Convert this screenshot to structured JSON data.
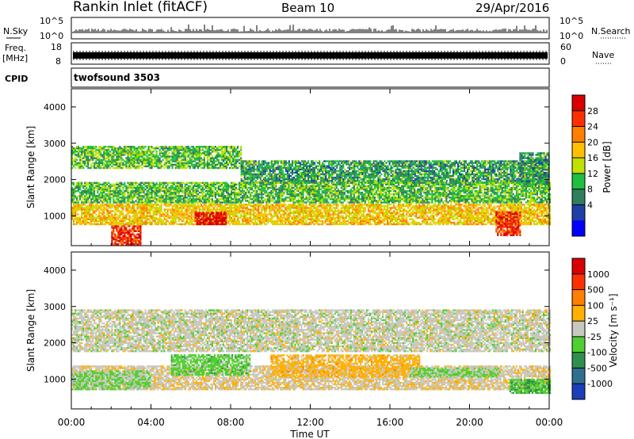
{
  "header": {
    "station": "Rankin Inlet (fitACF)",
    "beam": "Beam 10",
    "date": "29/Apr/2016"
  },
  "noise_panel": {
    "left_label": "N.Sky",
    "left_ticks": [
      "10^5",
      "10^0"
    ],
    "right_ticks": [
      "10^5",
      "10^0"
    ],
    "right_label": "N.Search"
  },
  "freq_panel": {
    "left_label_line1": "Freq.",
    "left_label_line2": "[MHz]",
    "left_ticks": [
      "18",
      "8"
    ],
    "right_ticks": [
      "60",
      "0"
    ],
    "right_label": "Nave"
  },
  "cpid_panel": {
    "label": "CPID",
    "program": "twofsound 3503"
  },
  "power_panel": {
    "ylabel": "Slant Range [km]",
    "yticks": [
      "4000",
      "3000",
      "2000",
      "1000"
    ],
    "colorbar_label": "Power [dB]",
    "colorbar_ticks": [
      "28",
      "24",
      "20",
      "16",
      "12",
      "8",
      "4"
    ],
    "colors": [
      "#0000ff",
      "#1f3fa8",
      "#2f7f5f",
      "#1fbf3f",
      "#bfe000",
      "#ffc000",
      "#ff8000",
      "#ff3000",
      "#d80000"
    ]
  },
  "velocity_panel": {
    "ylabel": "Slant Range [km]",
    "yticks": [
      "4000",
      "3000",
      "2000",
      "1000"
    ],
    "colorbar_label": "Velocity [m s⁻¹]",
    "colorbar_ticks": [
      "1000",
      "500",
      "100",
      "25",
      "-25",
      "-100",
      "-500",
      "-1000"
    ],
    "colors": [
      "#1a3fb8",
      "#2f6f8f",
      "#2f8f4f",
      "#4fcf2f",
      "#c8c8c0",
      "#ffb000",
      "#ff8000",
      "#ff3000",
      "#d80000"
    ]
  },
  "x_axis": {
    "ticks": [
      "00:00",
      "04:00",
      "08:00",
      "12:00",
      "16:00",
      "20:00",
      "00:00"
    ],
    "label": "Time UT"
  },
  "chart_data": {
    "type": "heatmap",
    "title": "Rankin Inlet (fitACF)",
    "x_range_hours_ut": [
      0,
      24
    ],
    "y_range_km": [
      180,
      4500
    ],
    "panels": [
      {
        "name": "Power",
        "unit": "dB",
        "scale": [
          0,
          30
        ],
        "bands": [
          {
            "t0": 0,
            "t1": 8.5,
            "r0": 2300,
            "r1": 2900,
            "value": 12
          },
          {
            "t0": 8.5,
            "t1": 24,
            "r0": 1900,
            "r1": 2500,
            "value": 10
          },
          {
            "t0": 0,
            "t1": 24,
            "r0": 1350,
            "r1": 1900,
            "value": 12
          },
          {
            "t0": 0,
            "t1": 24,
            "r0": 750,
            "r1": 1300,
            "value": 18
          },
          {
            "t0": 2,
            "t1": 3.5,
            "r0": 200,
            "r1": 700,
            "value": 26
          },
          {
            "t0": 6.2,
            "t1": 7.8,
            "r0": 750,
            "r1": 1100,
            "value": 28
          },
          {
            "t0": 21.3,
            "t1": 22.5,
            "r0": 450,
            "r1": 1100,
            "value": 26
          },
          {
            "t0": 22.5,
            "t1": 24,
            "r0": 1850,
            "r1": 2750,
            "value": 10
          }
        ]
      },
      {
        "name": "Velocity",
        "unit": "m s^-1",
        "scale": [
          -1000,
          1000
        ],
        "bands": [
          {
            "t0": 0,
            "t1": 24,
            "r0": 1750,
            "r1": 2900,
            "value": 0
          },
          {
            "t0": 0,
            "t1": 24,
            "r0": 700,
            "r1": 1350,
            "value": 60
          },
          {
            "t0": 0,
            "t1": 4,
            "r0": 700,
            "r1": 1200,
            "value": -120
          },
          {
            "t0": 5,
            "t1": 9,
            "r0": 1100,
            "r1": 1650,
            "value": -200
          },
          {
            "t0": 10,
            "t1": 17.5,
            "r0": 1050,
            "r1": 1650,
            "value": 200
          },
          {
            "t0": 17,
            "t1": 21.5,
            "r0": 1050,
            "r1": 1300,
            "value": -150
          },
          {
            "t0": 22,
            "t1": 24,
            "r0": 600,
            "r1": 1000,
            "value": -300
          }
        ]
      }
    ]
  }
}
